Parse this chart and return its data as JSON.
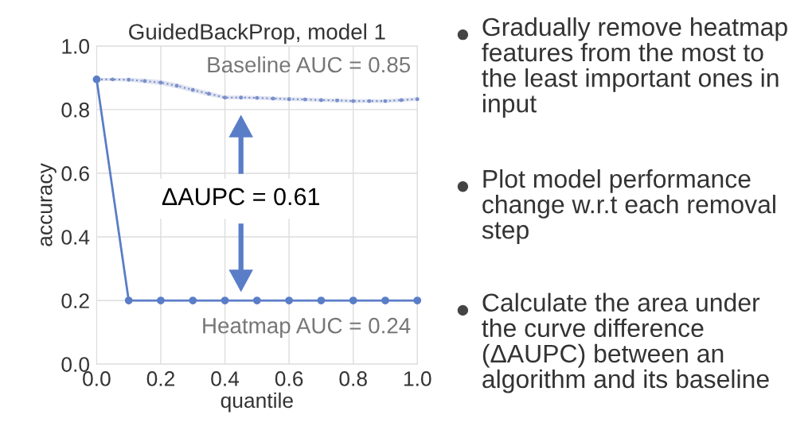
{
  "chart_data": {
    "type": "line",
    "title": "GuidedBackProp, model 1",
    "xlabel": "quantile",
    "ylabel": "accuracy",
    "xlim": [
      0.0,
      1.0
    ],
    "ylim": [
      0.0,
      1.0
    ],
    "xticks": [
      {
        "value": 0,
        "label": "0.0"
      },
      0.2,
      0.4,
      0.6,
      0.8,
      {
        "value": 1,
        "label": "1.0"
      }
    ],
    "yticks": [
      {
        "value": 0,
        "label": "0.0"
      },
      0.2,
      0.4,
      0.6,
      0.8,
      {
        "value": 1,
        "label": "1.0"
      }
    ],
    "grid": true,
    "line_style": "solid",
    "series": [
      {
        "color": "#7b8fc9",
        "marker": "circle",
        "line_style": "dotted",
        "x": [
          0,
          0.05,
          0.1,
          0.15,
          0.2,
          0.25,
          0.3,
          0.35,
          0.4,
          0.45,
          0.5,
          0.55,
          0.6,
          0.65,
          0.7,
          0.75,
          0.8,
          0.85,
          0.9,
          0.95,
          1.0
        ],
        "values": [
          0.895,
          0.895,
          0.894,
          0.89,
          0.885,
          0.875,
          0.862,
          0.85,
          0.838,
          0.838,
          0.837,
          0.835,
          0.833,
          0.832,
          0.83,
          0.829,
          0.827,
          0.827,
          0.827,
          0.83,
          0.833
        ],
        "lower": [
          0.89,
          0.89,
          0.888,
          0.883,
          0.877,
          0.867,
          0.854,
          0.843,
          0.832,
          0.832,
          0.831,
          0.829,
          0.827,
          0.826,
          0.824,
          0.823,
          0.821,
          0.821,
          0.821,
          0.824,
          0.827
        ],
        "upper": [
          0.9,
          0.9,
          0.9,
          0.897,
          0.893,
          0.883,
          0.87,
          0.857,
          0.844,
          0.844,
          0.843,
          0.841,
          0.839,
          0.838,
          0.836,
          0.835,
          0.833,
          0.833,
          0.833,
          0.836,
          0.839
        ]
      },
      {
        "color": "#5a7dc8",
        "marker": "circle",
        "x": [
          0,
          0.1,
          0.2,
          0.3,
          0.4,
          0.5,
          0.6,
          0.7,
          0.8,
          0.9,
          1.0
        ],
        "values": [
          0.895,
          0.2,
          0.2,
          0.2,
          0.2,
          0.2,
          0.2,
          0.2,
          0.2,
          0.2,
          0.2
        ]
      }
    ],
    "annotations": [
      "Baseline AUC = 0.85",
      "Heatmap AUC = 0.24",
      "ΔAUPC = 0.61",
      "Gradually remove heatmap features from the most to the least important ones in input",
      "Plot model performance change w.r.t each removal step",
      "Calculate the area under the curve difference (ΔAUPC) between an algorithm and its baseline"
    ]
  }
}
